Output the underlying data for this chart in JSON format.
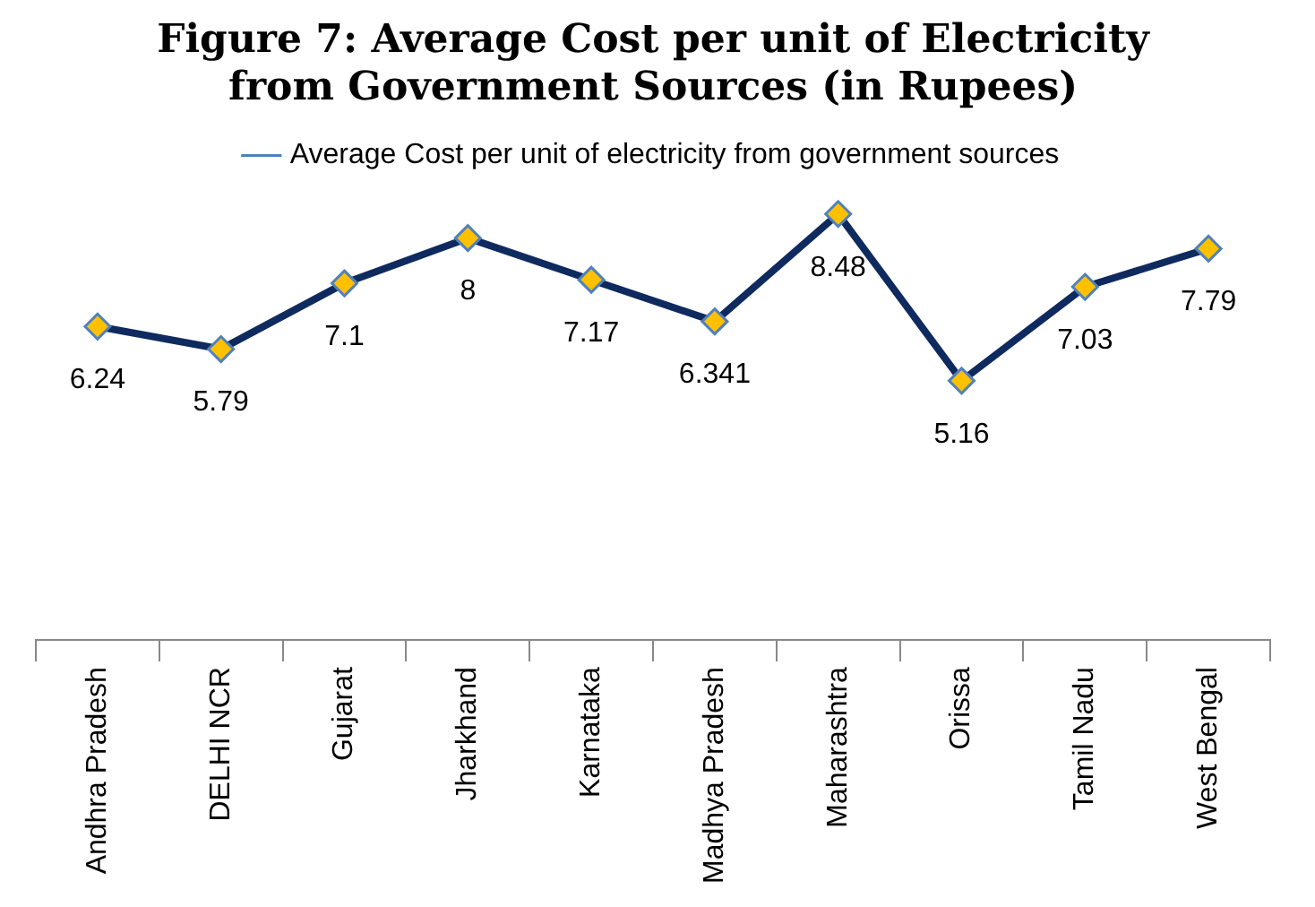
{
  "chart_data": {
    "type": "line",
    "title": "Figure 7: Average Cost per unit of Electricity\nfrom Government Sources (in Rupees)",
    "categories": [
      "Andhra Pradesh",
      "DELHI NCR",
      "Gujarat",
      "Jharkhand",
      "Karnataka",
      "Madhya Pradesh",
      "Maharashtra",
      "Orissa",
      "Tamil Nadu",
      "West Bengal"
    ],
    "series": [
      {
        "name": "Average Cost per unit of electricity from government sources",
        "color": "#0f2a5e",
        "values": [
          6.24,
          5.79,
          7.1,
          8,
          7.17,
          6.341,
          8.48,
          5.16,
          7.03,
          7.79
        ]
      }
    ],
    "tick_labels": "x",
    "data_labels": true,
    "marker": "diamond",
    "legend": "top",
    "grid": false
  }
}
